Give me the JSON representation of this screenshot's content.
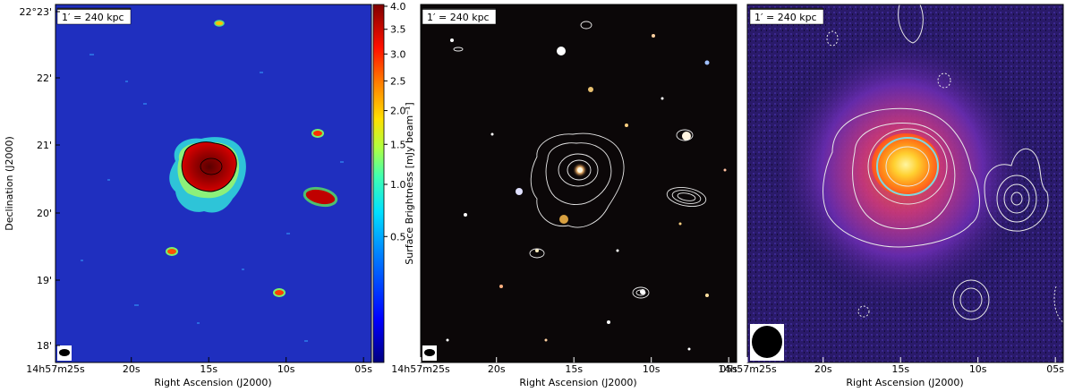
{
  "scale_bar_label": "1′ = 240 kpc",
  "ra_axis_label": "Right Ascension (J2000)",
  "dec_axis_label": "Declination (J2000)",
  "colorbar_label": "Surface Brightness [mJy beam⁻¹]",
  "colorbar_ticks": [
    "4.0",
    "3.5",
    "3.0",
    "2.5",
    "2.0",
    "1.5",
    "1.0",
    "0.5"
  ],
  "colorbar_tick_values": [
    4.0,
    3.5,
    3.0,
    2.5,
    2.0,
    1.5,
    1.0,
    0.5
  ],
  "ra_ticks": [
    "14h57m25s",
    "20s",
    "15s",
    "10s",
    "05s"
  ],
  "ra_ticks_mid": [
    "14h57m25s",
    "20s",
    "15s",
    "10s",
    "05s"
  ],
  "ra_ticks_right": [
    "14h57m25s",
    "20s",
    "15s",
    "10s",
    "05s"
  ],
  "dec_ticks": [
    "22°23'",
    "22'",
    "21'",
    "20'",
    "19'",
    "18'"
  ],
  "colors": {
    "radio_bg": "#1f2fbf",
    "optical_bg": "#0b0708",
    "xray_bg": "#1a1250",
    "contour": "#e8e8e8"
  }
}
